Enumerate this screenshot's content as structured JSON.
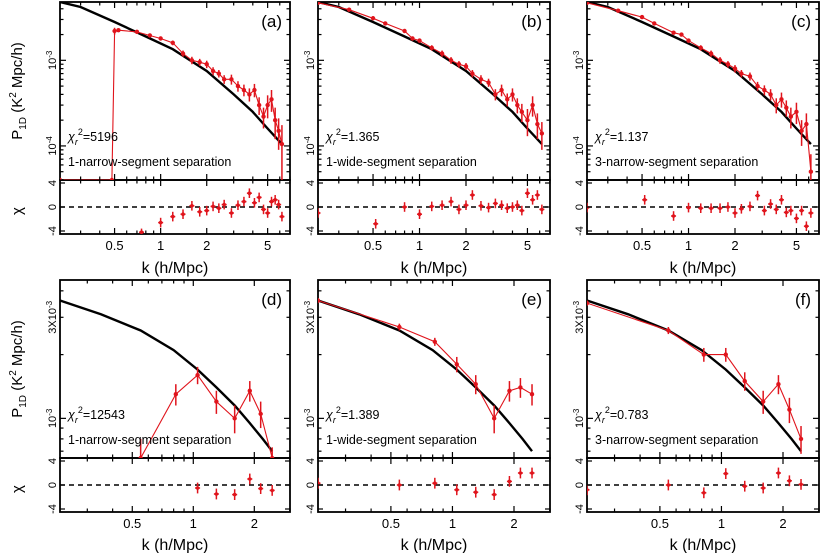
{
  "figure": {
    "xlabel": "k (h/Mpc)",
    "ylabel_main": "P",
    "ylabel_sub": "1D",
    "ylabel_tail": " (K",
    "ylabel_sup": "2",
    "ylabel_end": " Mpc/h)",
    "ylabel_resid": "χ",
    "chi_symbol": "χ",
    "chi_sub": "r",
    "chi_sup": "2"
  },
  "chart_data": [
    {
      "id": "a",
      "type": "line",
      "tag": "(a)",
      "chi2_label": "=5196",
      "method": "1-narrow-segment separation",
      "xscale": "log",
      "xlim": [
        0.22,
        7.0
      ],
      "yscale": "log",
      "ylim": [
        4e-05,
        0.0048
      ],
      "ytick_labels": [
        {
          "value": 0.001,
          "label": "10-3"
        },
        {
          "value": 0.0001,
          "label": "10-4"
        }
      ],
      "xticks": [
        0.5,
        1,
        2,
        5
      ],
      "resid_ylim": [
        -4.5,
        4.5
      ],
      "resid_yticks": [
        4,
        0,
        -4
      ],
      "model": {
        "x": [
          0.22,
          0.3,
          0.5,
          0.8,
          1.2,
          2,
          3,
          4,
          5,
          6.2
        ],
        "y": [
          0.0048,
          0.0042,
          0.0028,
          0.0019,
          0.00135,
          0.00075,
          0.0004,
          0.00025,
          0.00016,
          0.000105
        ]
      },
      "series": [
        {
          "x": [
            0.22,
            0.48,
            0.5,
            0.53,
            0.7,
            0.85,
            1,
            1.2,
            1.4,
            1.6,
            1.8,
            2,
            2.2,
            2.4,
            2.6,
            2.9,
            3.2,
            3.5,
            3.8,
            4.1,
            4.4,
            4.7,
            5,
            5.3,
            5.6,
            5.9,
            6.2
          ],
          "y": [
            4e-05,
            4e-05,
            0.0022,
            0.00225,
            0.00215,
            0.00195,
            0.0018,
            0.0016,
            0.0012,
            0.001,
            0.00095,
            0.0009,
            0.00075,
            0.0007,
            0.0006,
            0.0006,
            0.0005,
            0.00045,
            0.0004,
            0.00045,
            0.0003,
            0.00022,
            0.0003,
            0.00035,
            0.0002,
            0.00015,
            0.000105
          ],
          "err": [
            0,
            0,
            0.0002,
            0,
            0.0001,
            0.0001,
            0.0001,
            0.0001,
            0.0001,
            0.0001,
            9e-05,
            9e-05,
            8e-05,
            7e-05,
            7e-05,
            8e-05,
            7e-05,
            7e-05,
            7e-05,
            8e-05,
            7e-05,
            6e-05,
            9e-05,
            0.0001,
            8e-05,
            6e-05,
            7e-05
          ]
        }
      ],
      "resid": {
        "x": [
          0.75,
          1.0,
          1.2,
          1.4,
          1.6,
          1.8,
          2.0,
          2.2,
          2.4,
          2.6,
          2.9,
          3.2,
          3.5,
          3.8,
          4.1,
          4.4,
          4.7,
          5.0,
          5.3,
          5.6,
          5.9,
          6.2
        ],
        "y": [
          -4.2,
          -2.6,
          -1.6,
          -1.2,
          0.2,
          -0.8,
          -0.6,
          0.1,
          -0.2,
          0.4,
          -1.0,
          0.3,
          0.9,
          2.3,
          0.7,
          1.6,
          -0.4,
          -1.0,
          0.9,
          1.2,
          0.4,
          -1.6
        ],
        "err": [
          0.6,
          0.8,
          0.8,
          0.8,
          0.8,
          0.8,
          0.8,
          0.8,
          0.8,
          0.8,
          0.8,
          0.8,
          0.8,
          0.8,
          0.8,
          0.8,
          0.8,
          0.8,
          0.8,
          0.8,
          0.8,
          0.8
        ]
      }
    },
    {
      "id": "b",
      "type": "line",
      "tag": "(b)",
      "chi2_label": "=1.365",
      "method": "1-wide-segment separation",
      "xscale": "log",
      "xlim": [
        0.22,
        7.0
      ],
      "yscale": "log",
      "ylim": [
        4e-05,
        0.0048
      ],
      "ytick_labels": [
        {
          "value": 0.001,
          "label": "10-3"
        },
        {
          "value": 0.0001,
          "label": "10-4"
        }
      ],
      "xticks": [
        0.5,
        1,
        2,
        5
      ],
      "resid_ylim": [
        -4.5,
        4.5
      ],
      "resid_yticks": [
        4,
        0,
        -4
      ],
      "model": {
        "x": [
          0.22,
          0.3,
          0.5,
          0.8,
          1.2,
          2,
          3,
          4,
          5,
          6.2
        ],
        "y": [
          0.0048,
          0.0042,
          0.0028,
          0.0019,
          0.00135,
          0.00075,
          0.0004,
          0.00025,
          0.00016,
          0.000105
        ]
      },
      "series": [
        {
          "x": [
            0.22,
            0.35,
            0.5,
            0.6,
            0.8,
            0.9,
            1.0,
            1.2,
            1.4,
            1.6,
            1.8,
            2.0,
            2.2,
            2.5,
            2.8,
            3.1,
            3.4,
            3.7,
            4.0,
            4.3,
            4.6,
            5.0,
            5.4,
            5.8,
            6.2
          ],
          "y": [
            0.0047,
            0.0039,
            0.0031,
            0.0027,
            0.0022,
            0.0018,
            0.0017,
            0.0014,
            0.0012,
            0.001,
            0.0009,
            0.00085,
            0.0007,
            0.0006,
            0.00055,
            0.0004,
            0.00045,
            0.00035,
            0.0004,
            0.0003,
            0.00025,
            0.0002,
            0.0003,
            0.00018,
            0.00014
          ],
          "err": [
            0.0001,
            0.0001,
            0.0001,
            0.0001,
            0.0001,
            0.0001,
            0.0001,
            0.0001,
            0.0001,
            9e-05,
            8e-05,
            8e-05,
            7e-05,
            7e-05,
            6e-05,
            6e-05,
            7e-05,
            6e-05,
            7e-05,
            6e-05,
            6e-05,
            7e-05,
            8e-05,
            6e-05,
            5e-05
          ]
        }
      ],
      "resid": {
        "x": [
          0.22,
          0.52,
          0.8,
          1.0,
          1.2,
          1.4,
          1.6,
          1.8,
          2.0,
          2.2,
          2.5,
          2.8,
          3.1,
          3.4,
          3.7,
          4.0,
          4.3,
          4.6,
          5.0,
          5.4,
          5.8,
          6.2
        ],
        "y": [
          -1.0,
          -2.8,
          0.0,
          -1.2,
          0.1,
          0.3,
          0.9,
          -0.4,
          0.3,
          2.0,
          0.2,
          -0.1,
          0.6,
          0.3,
          -0.2,
          0.0,
          0.3,
          -0.6,
          2.3,
          1.2,
          2.0,
          -0.4
        ],
        "err": [
          0.8,
          0.8,
          0.8,
          0.8,
          0.8,
          0.8,
          0.8,
          0.8,
          0.8,
          0.8,
          0.8,
          0.8,
          0.8,
          0.8,
          0.8,
          0.8,
          0.8,
          0.8,
          0.8,
          0.8,
          0.8,
          0.8
        ]
      }
    },
    {
      "id": "c",
      "type": "line",
      "tag": "(c)",
      "chi2_label": "=1.137",
      "method": "3-narrow-segment separation",
      "xscale": "log",
      "xlim": [
        0.22,
        7.0
      ],
      "yscale": "log",
      "ylim": [
        4e-05,
        0.0048
      ],
      "ytick_labels": [
        {
          "value": 0.001,
          "label": "10-3"
        },
        {
          "value": 0.0001,
          "label": "10-4"
        }
      ],
      "xticks": [
        0.5,
        1,
        2,
        5
      ],
      "resid_ylim": [
        -4.5,
        4.5
      ],
      "resid_yticks": [
        4,
        0,
        -4
      ],
      "model": {
        "x": [
          0.22,
          0.3,
          0.5,
          0.8,
          1.2,
          2,
          3,
          4,
          5,
          6.2
        ],
        "y": [
          0.0048,
          0.0042,
          0.0028,
          0.0019,
          0.00135,
          0.00075,
          0.0004,
          0.00025,
          0.00016,
          0.000105
        ]
      },
      "series": [
        {
          "x": [
            0.22,
            0.35,
            0.5,
            0.6,
            0.8,
            0.9,
            1.0,
            1.2,
            1.4,
            1.6,
            1.8,
            2.0,
            2.2,
            2.5,
            2.8,
            3.1,
            3.4,
            3.7,
            4.0,
            4.3,
            4.6,
            5.0,
            5.4,
            5.8,
            6.2
          ],
          "y": [
            0.0047,
            0.0038,
            0.0032,
            0.0027,
            0.0021,
            0.002,
            0.0017,
            0.0014,
            0.0012,
            0.001,
            0.0009,
            0.0008,
            0.0007,
            0.00065,
            0.0005,
            0.00045,
            0.0004,
            0.0003,
            0.00035,
            0.00028,
            0.00022,
            0.00025,
            0.00015,
            0.00018,
            5e-05
          ],
          "err": [
            0.0001,
            0.0001,
            0.0001,
            0.0001,
            0.0001,
            0.0001,
            0.0001,
            0.0001,
            0.0001,
            9e-05,
            8e-05,
            8e-05,
            7e-05,
            7e-05,
            6e-05,
            6e-05,
            6e-05,
            6e-05,
            7e-05,
            6e-05,
            6e-05,
            7e-05,
            5e-05,
            6e-05,
            3e-05
          ]
        }
      ],
      "resid": {
        "x": [
          0.22,
          0.52,
          0.8,
          1.0,
          1.2,
          1.4,
          1.6,
          1.8,
          2.0,
          2.2,
          2.5,
          2.8,
          3.1,
          3.4,
          3.7,
          4.0,
          4.3,
          4.6,
          5.0,
          5.4,
          5.8,
          6.2
        ],
        "y": [
          -0.1,
          1.2,
          -1.5,
          -0.1,
          -0.2,
          -0.2,
          -0.2,
          0.0,
          -1.0,
          -0.3,
          0.1,
          1.9,
          -0.6,
          0.5,
          -0.4,
          1.2,
          -0.9,
          -0.6,
          -1.9,
          -0.6,
          -3.2,
          -1.0
        ],
        "err": [
          0.8,
          0.8,
          0.8,
          0.8,
          0.8,
          0.8,
          0.8,
          0.8,
          0.8,
          0.8,
          0.8,
          0.8,
          0.8,
          0.8,
          0.8,
          0.8,
          0.8,
          0.8,
          0.8,
          0.8,
          0.8,
          0.8
        ]
      }
    },
    {
      "id": "d",
      "type": "line",
      "tag": "(d)",
      "chi2_label": "=12543",
      "method": "1-narrow-segment separation",
      "xscale": "log",
      "xlim": [
        0.22,
        3.0
      ],
      "yscale": "log",
      "ylim": [
        0.00065,
        0.0045
      ],
      "ytick_labels": [
        {
          "value": 0.003,
          "label": "3X10-3"
        },
        {
          "value": 0.001,
          "label": "10-3"
        }
      ],
      "xticks": [
        0.5,
        1,
        2
      ],
      "resid_ylim": [
        -4.5,
        4.5
      ],
      "resid_yticks": [
        4,
        0,
        -4
      ],
      "model": {
        "x": [
          0.22,
          0.35,
          0.55,
          0.8,
          1.05,
          1.3,
          1.6,
          1.9,
          2.2,
          2.45
        ],
        "y": [
          0.0036,
          0.0031,
          0.0026,
          0.0021,
          0.0017,
          0.0014,
          0.00115,
          0.00095,
          0.0008,
          0.0007
        ]
      },
      "series": [
        {
          "x": [
            0.55,
            0.82,
            1.05,
            1.3,
            1.6,
            1.9,
            2.15,
            2.45
          ],
          "y": [
            0.00065,
            0.0013,
            0.0016,
            0.0012,
            0.001,
            0.00135,
            0.00105,
            0.00065
          ],
          "err": [
            0.00015,
            0.00015,
            0.00015,
            0.00015,
            0.00015,
            0.00015,
            0.00015,
            8e-05
          ]
        }
      ],
      "resid": {
        "x": [
          1.05,
          1.3,
          1.6,
          1.9,
          2.15,
          2.45
        ],
        "y": [
          -0.5,
          -1.5,
          -1.6,
          1.0,
          -0.6,
          -0.9
        ],
        "err": [
          0.9,
          0.9,
          0.9,
          0.9,
          0.9,
          0.9
        ]
      }
    },
    {
      "id": "e",
      "type": "line",
      "tag": "(e)",
      "chi2_label": "=1.389",
      "method": "1-wide-segment separation",
      "xscale": "log",
      "xlim": [
        0.22,
        3.0
      ],
      "yscale": "log",
      "ylim": [
        0.00065,
        0.0045
      ],
      "ytick_labels": [
        {
          "value": 0.003,
          "label": "3X10-3"
        },
        {
          "value": 0.001,
          "label": "10-3"
        }
      ],
      "xticks": [
        0.5,
        1,
        2
      ],
      "resid_ylim": [
        -4.5,
        4.5
      ],
      "resid_yticks": [
        4,
        0,
        -4
      ],
      "model": {
        "x": [
          0.22,
          0.35,
          0.55,
          0.8,
          1.05,
          1.3,
          1.6,
          1.9,
          2.2,
          2.45
        ],
        "y": [
          0.0036,
          0.0031,
          0.0026,
          0.0021,
          0.0017,
          0.0014,
          0.00115,
          0.00095,
          0.0008,
          0.0007
        ]
      },
      "series": [
        {
          "x": [
            0.22,
            0.55,
            0.82,
            1.05,
            1.3,
            1.6,
            1.9,
            2.15,
            2.45
          ],
          "y": [
            0.0036,
            0.0027,
            0.0023,
            0.0018,
            0.00145,
            0.001,
            0.00135,
            0.0014,
            0.0013
          ],
          "err": [
            0.0001,
            0.0001,
            0.0001,
            0.00015,
            0.00015,
            0.00015,
            0.00015,
            0.00015,
            0.00015
          ]
        }
      ],
      "resid": {
        "x": [
          0.22,
          0.55,
          0.82,
          1.05,
          1.3,
          1.6,
          1.9,
          2.15,
          2.45
        ],
        "y": [
          0.3,
          0.0,
          0.3,
          -0.8,
          -1.2,
          -1.6,
          0.6,
          2.0,
          2.0
        ],
        "err": [
          0.9,
          0.9,
          0.9,
          0.9,
          0.9,
          0.9,
          0.9,
          0.9,
          0.9
        ]
      }
    },
    {
      "id": "f",
      "type": "line",
      "tag": "(f)",
      "chi2_label": "=0.783",
      "method": "3-narrow-segment separation",
      "xscale": "log",
      "xlim": [
        0.22,
        3.0
      ],
      "yscale": "log",
      "ylim": [
        0.00065,
        0.0045
      ],
      "ytick_labels": [
        {
          "value": 0.003,
          "label": "3X10-3"
        },
        {
          "value": 0.001,
          "label": "10-3"
        }
      ],
      "xticks": [
        0.5,
        1,
        2
      ],
      "resid_ylim": [
        -4.5,
        4.5
      ],
      "resid_yticks": [
        4,
        0,
        -4
      ],
      "model": {
        "x": [
          0.22,
          0.35,
          0.55,
          0.8,
          1.05,
          1.3,
          1.6,
          1.9,
          2.2,
          2.45
        ],
        "y": [
          0.0036,
          0.0031,
          0.0026,
          0.0021,
          0.0017,
          0.0014,
          0.00115,
          0.00095,
          0.0008,
          0.0007
        ]
      },
      "series": [
        {
          "x": [
            0.22,
            0.55,
            0.82,
            1.05,
            1.3,
            1.6,
            1.9,
            2.15,
            2.45
          ],
          "y": [
            0.0035,
            0.0026,
            0.002,
            0.002,
            0.0015,
            0.0012,
            0.00145,
            0.0011,
            0.0008
          ],
          "err": [
            0.0001,
            0.0001,
            0.00015,
            0.00015,
            0.00015,
            0.00015,
            0.00015,
            0.00015,
            0.00012
          ]
        }
      ],
      "resid": {
        "x": [
          0.22,
          0.55,
          0.82,
          1.05,
          1.3,
          1.6,
          1.9,
          2.15,
          2.45
        ],
        "y": [
          -0.8,
          0.0,
          -1.3,
          1.9,
          -0.2,
          -0.5,
          2.0,
          0.7,
          0.1
        ],
        "err": [
          0.9,
          0.9,
          0.9,
          0.9,
          0.9,
          0.9,
          0.9,
          0.9,
          0.9
        ]
      }
    }
  ]
}
